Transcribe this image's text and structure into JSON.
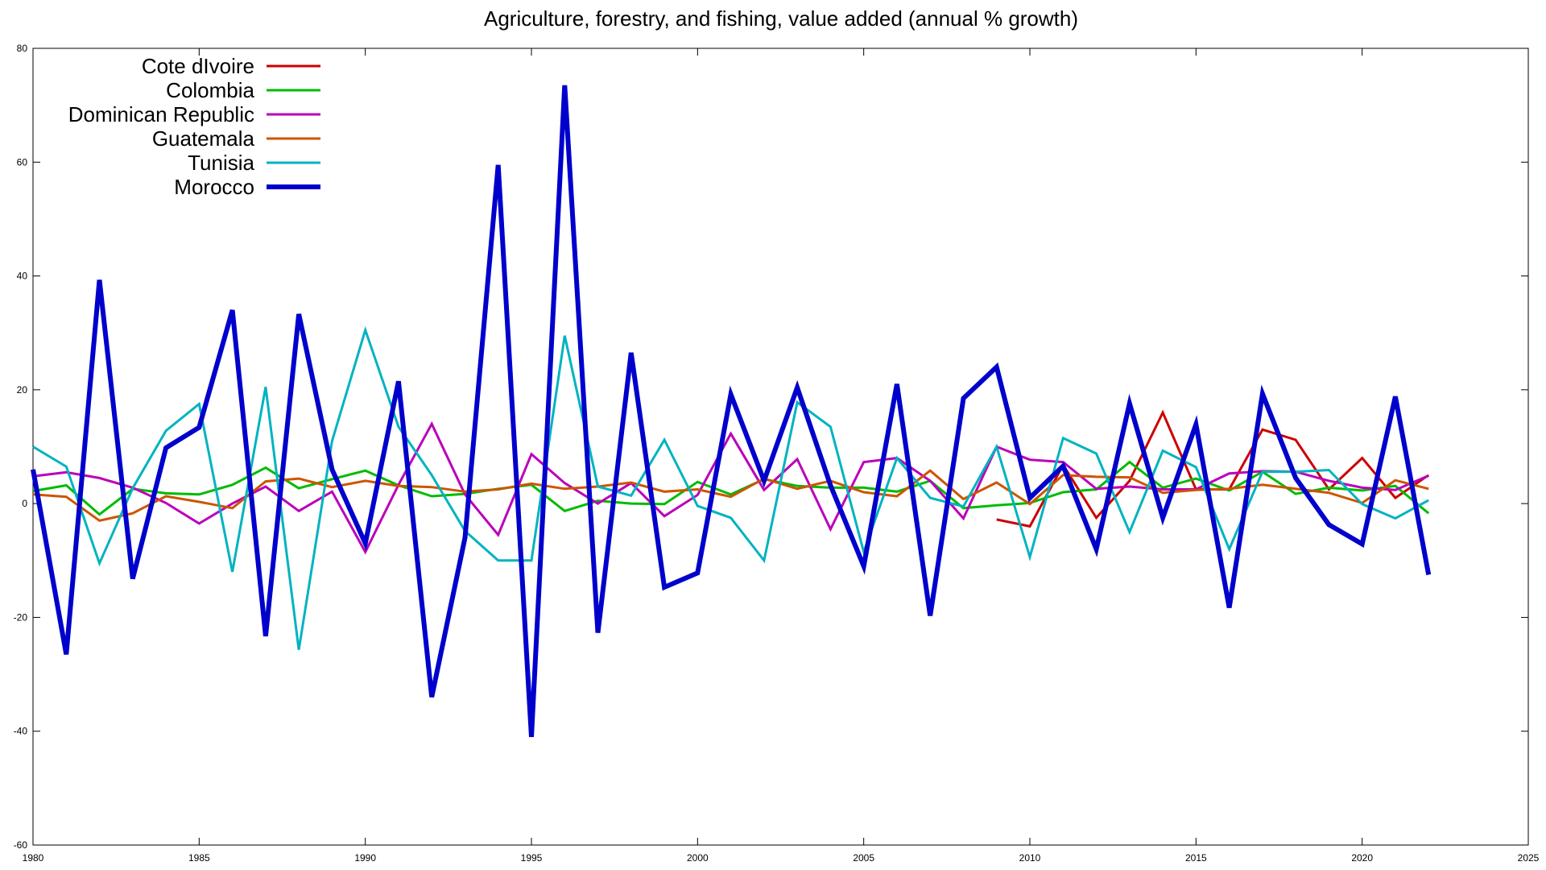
{
  "chart_data": {
    "type": "line",
    "title": "Agriculture, forestry, and fishing, value added (annual % growth)",
    "xlabel": "",
    "ylabel": "",
    "xlim": [
      1980,
      2025
    ],
    "ylim": [
      -60,
      80
    ],
    "x_ticks": [
      1980,
      1985,
      1990,
      1995,
      2000,
      2005,
      2010,
      2015,
      2020,
      2025
    ],
    "y_ticks": [
      -60,
      -40,
      -20,
      0,
      20,
      40,
      60,
      80
    ],
    "grid": false,
    "legend_position": "top-left",
    "x": [
      1980,
      1981,
      1982,
      1983,
      1984,
      1985,
      1986,
      1987,
      1988,
      1989,
      1990,
      1991,
      1992,
      1993,
      1994,
      1995,
      1996,
      1997,
      1998,
      1999,
      2000,
      2001,
      2002,
      2003,
      2004,
      2005,
      2006,
      2007,
      2008,
      2009,
      2010,
      2011,
      2012,
      2013,
      2014,
      2015,
      2016,
      2017,
      2018,
      2019,
      2020,
      2021,
      2022
    ],
    "series": [
      {
        "name": "Cote dIvoire",
        "color": "#cc0000",
        "width": 3,
        "values": [
          null,
          null,
          null,
          null,
          null,
          null,
          null,
          null,
          null,
          null,
          null,
          null,
          null,
          null,
          null,
          null,
          null,
          null,
          null,
          null,
          null,
          null,
          null,
          null,
          null,
          null,
          null,
          null,
          null,
          -2.8,
          -4,
          6.8,
          -2.5,
          4,
          16,
          2.5,
          2.5,
          13,
          11.2,
          2.5,
          8,
          1,
          5
        ]
      },
      {
        "name": "Colombia",
        "color": "#00bb00",
        "width": 3,
        "values": [
          2.2,
          3.2,
          -1.9,
          2.6,
          1.8,
          1.6,
          3.3,
          6.3,
          2.7,
          4.3,
          5.8,
          3.2,
          1.3,
          1.7,
          2.6,
          3.3,
          -1.3,
          0.5,
          0,
          -0.1,
          3.8,
          1.6,
          4.3,
          3.1,
          2.8,
          2.8,
          2.1,
          4,
          -0.8,
          -0.3,
          0.1,
          2,
          2.5,
          7.3,
          2.8,
          4.4,
          2.3,
          5.6,
          1.7,
          2.8,
          2.3,
          3.1,
          -1.7
        ]
      },
      {
        "name": "Dominican Republic",
        "color": "#bb00bb",
        "width": 3,
        "values": [
          4.8,
          5.5,
          4.5,
          2.8,
          0.1,
          -3.5,
          0,
          3,
          -1.3,
          2.1,
          -8.5,
          3.3,
          14,
          1.6,
          -5.5,
          8.7,
          3.6,
          0,
          3.6,
          -2.2,
          1.5,
          12.3,
          2.4,
          7.8,
          -4.5,
          7.3,
          8,
          4,
          -2.6,
          10,
          7.7,
          7.3,
          2.6,
          3,
          2.5,
          2.5,
          5.3,
          5.7,
          5.6,
          4,
          2.8,
          2.4,
          4.9
        ]
      },
      {
        "name": "Guatemala",
        "color": "#cc5500",
        "width": 3,
        "values": [
          1.6,
          1.2,
          -3,
          -1.7,
          1.3,
          0.3,
          -0.8,
          3.9,
          4.4,
          2.9,
          4,
          3.1,
          2.9,
          2.1,
          2.5,
          3.5,
          2.6,
          3,
          3.7,
          2.1,
          2.5,
          1.2,
          4.4,
          2.6,
          4,
          2,
          1.3,
          5.8,
          0.8,
          3.7,
          -0.1,
          5,
          4.7,
          4.6,
          1.9,
          2.4,
          2.6,
          3.3,
          2.6,
          1.9,
          0.1,
          4.1,
          2.6
        ]
      },
      {
        "name": "Tunisia",
        "color": "#00b3c0",
        "width": 3,
        "values": [
          10,
          6.5,
          -10.5,
          2.7,
          12.8,
          17.5,
          -12,
          20.5,
          -25.7,
          11,
          30.5,
          13.5,
          5,
          -4.8,
          -10,
          -10,
          29.5,
          3,
          1.4,
          11.2,
          -0.4,
          -2.5,
          -10,
          17.8,
          13.5,
          -8.5,
          8,
          1,
          -0.5,
          10,
          -9.4,
          11.5,
          8.8,
          -5,
          9.3,
          6.4,
          -8,
          5.6,
          5.6,
          5.9,
          -0.1,
          -2.6,
          0.6
        ]
      },
      {
        "name": "Morocco",
        "color": "#0000cc",
        "width": 6,
        "values": [
          6,
          -26.5,
          39.3,
          -13.2,
          9.8,
          13.4,
          34,
          -23.3,
          33.3,
          6,
          -7,
          21.5,
          -34,
          -6,
          59.5,
          -41,
          73.5,
          -22.7,
          26.5,
          -14.7,
          -12.2,
          19.2,
          4,
          20.4,
          3.2,
          -11,
          21,
          -19.7,
          18.5,
          24,
          1,
          6.6,
          -8,
          17.6,
          -2.5,
          13.9,
          -18.3,
          19.3,
          4.5,
          -3.7,
          -7.1,
          18.8,
          -12.5
        ]
      }
    ]
  }
}
